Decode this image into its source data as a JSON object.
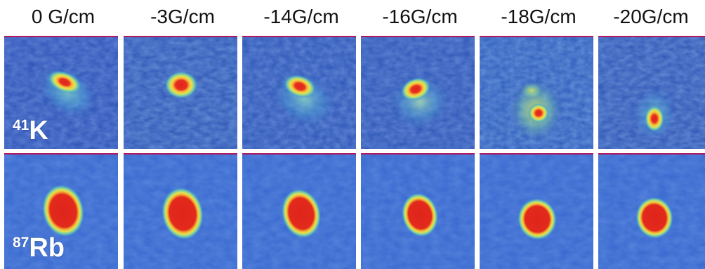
{
  "figure": {
    "columns": [
      {
        "label": "0 G/cm"
      },
      {
        "label": "-3G/cm"
      },
      {
        "label": "-14G/cm"
      },
      {
        "label": "-16G/cm"
      },
      {
        "label": "-18G/cm"
      },
      {
        "label": "-20G/cm"
      }
    ],
    "rows": [
      {
        "mass_number": "41",
        "element": "K"
      },
      {
        "mass_number": "87",
        "element": "Rb"
      }
    ]
  },
  "colors": {
    "background_low": "#2a4fb8",
    "density_high": "#e0241c",
    "density_mid": "#f2e24a",
    "halo": "#3fa6d6",
    "panel_border": "#b01860"
  }
}
